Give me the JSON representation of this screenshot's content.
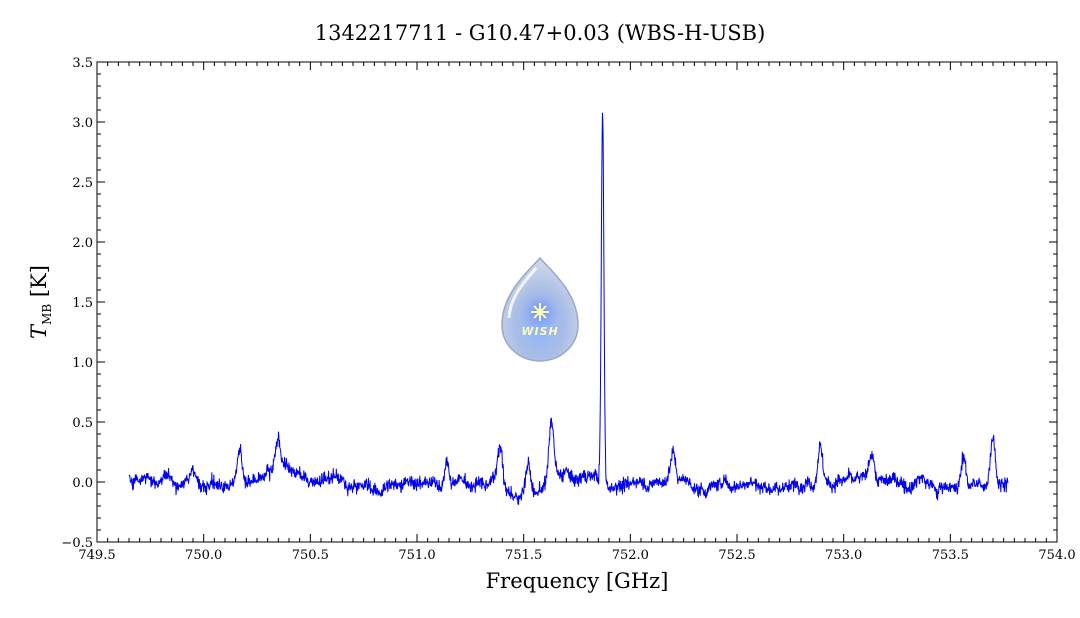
{
  "chart_data": {
    "type": "line",
    "title": "1342217711 - G10.47+0.03 (WBS-H-USB)",
    "xlabel": "Frequency [GHz]",
    "ylabel_main": "T",
    "ylabel_sub": "MB",
    "ylabel_unit": "[K]",
    "xlim": [
      749.5,
      754.0
    ],
    "ylim": [
      -0.5,
      3.5
    ],
    "xticks": [
      749.5,
      750.0,
      750.5,
      751.0,
      751.5,
      752.0,
      752.5,
      753.0,
      753.5,
      754.0
    ],
    "xtick_labels": [
      "749.5",
      "750.0",
      "750.5",
      "751.0",
      "751.5",
      "752.0",
      "752.5",
      "753.0",
      "753.5",
      "754.0"
    ],
    "yticks": [
      -0.5,
      0.0,
      0.5,
      1.0,
      1.5,
      2.0,
      2.5,
      3.0,
      3.5
    ],
    "ytick_labels": [
      "−0.5",
      "0.0",
      "0.5",
      "1.0",
      "1.5",
      "2.0",
      "2.5",
      "3.0",
      "3.5"
    ],
    "grid": false,
    "series": [
      {
        "color": "#0000ee",
        "x_range": [
          749.65,
          753.77
        ],
        "noise_rms": 0.07,
        "peaks": [
          {
            "x": 749.95,
            "y": 0.12
          },
          {
            "x": 750.17,
            "y": 0.28
          },
          {
            "x": 750.35,
            "y": 0.25
          },
          {
            "x": 751.14,
            "y": 0.22
          },
          {
            "x": 751.39,
            "y": 0.38
          },
          {
            "x": 751.52,
            "y": 0.22
          },
          {
            "x": 751.63,
            "y": 0.48
          },
          {
            "x": 751.87,
            "y": 3.07
          },
          {
            "x": 752.2,
            "y": 0.27
          },
          {
            "x": 752.89,
            "y": 0.32
          },
          {
            "x": 753.13,
            "y": 0.2
          },
          {
            "x": 753.56,
            "y": 0.23
          },
          {
            "x": 753.7,
            "y": 0.4
          }
        ]
      }
    ]
  },
  "logo": {
    "name": "WISH logo",
    "text": "WISH"
  }
}
